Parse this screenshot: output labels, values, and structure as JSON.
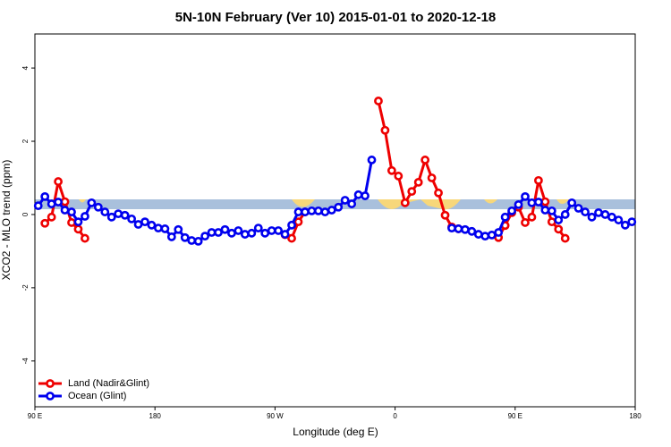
{
  "chart_data": {
    "type": "line",
    "title": "5N-10N February (Ver 10)   2015-01-01 to 2020-12-18",
    "x_label": "Longitude (deg E)",
    "y_label": "XCO2 - MLO trend (ppm)",
    "xlim": [
      90,
      540
    ],
    "ylim": [
      -5.25,
      4.93
    ],
    "xticks": [
      {
        "value": 90,
        "label": "90 E"
      },
      180,
      {
        "value": 270,
        "label": "90 W"
      },
      {
        "value": 360,
        "label": "0"
      },
      {
        "value": 450,
        "label": "90 E"
      },
      {
        "value": 540,
        "label": "180"
      }
    ],
    "yticks": [
      -4,
      -2,
      0,
      2,
      4
    ],
    "legend": "bottom-left",
    "x": [
      92.5,
      97.5,
      102.5,
      107.5,
      112.5,
      117.5,
      122.5,
      127.5,
      132.5,
      137.5,
      142.5,
      147.5,
      152.5,
      157.5,
      162.5,
      167.5,
      172.5,
      177.5,
      182.5,
      187.5,
      192.5,
      197.5,
      202.5,
      207.5,
      212.5,
      217.5,
      222.5,
      227.5,
      232.5,
      237.5,
      242.5,
      247.5,
      252.5,
      257.5,
      262.5,
      267.5,
      272.5,
      277.5,
      282.5,
      287.5,
      292.5,
      297.5,
      302.5,
      307.5,
      312.5,
      317.5,
      322.5,
      327.5,
      332.5,
      337.5,
      342.5,
      347.5,
      352.5,
      357.5,
      362.5,
      367.5,
      372.5,
      377.5,
      382.5,
      387.5,
      392.5,
      397.5,
      402.5,
      407.5,
      412.5,
      417.5,
      422.5,
      427.5,
      432.5,
      437.5,
      442.5,
      447.5,
      452.5,
      457.5,
      462.5,
      467.5,
      472.5,
      477.5,
      482.5,
      487.5,
      492.5,
      497.5,
      502.5,
      507.5,
      512.5,
      517.5,
      522.5,
      527.5,
      532.5,
      537.5
    ],
    "series": [
      {
        "name": "Land (Nadir&Glint)",
        "color": "#ee0000",
        "values": [
          null,
          -0.24,
          -0.07,
          0.9,
          0.35,
          -0.22,
          -0.4,
          -0.65,
          null,
          null,
          null,
          null,
          null,
          null,
          null,
          null,
          null,
          null,
          null,
          null,
          null,
          null,
          null,
          null,
          null,
          null,
          null,
          null,
          null,
          null,
          null,
          null,
          null,
          null,
          null,
          null,
          null,
          -0.55,
          -0.65,
          -0.2,
          0.07,
          null,
          null,
          null,
          null,
          null,
          null,
          null,
          null,
          null,
          null,
          3.1,
          2.3,
          1.2,
          1.05,
          0.32,
          0.63,
          0.88,
          1.49,
          1.0,
          0.59,
          -0.02,
          -0.34,
          -0.39,
          null,
          null,
          null,
          null,
          null,
          -0.63,
          -0.3,
          0.05,
          0.2,
          -0.22,
          -0.07,
          0.93,
          0.35,
          -0.2,
          -0.4,
          -0.65,
          null,
          null,
          null,
          null,
          null,
          null,
          null,
          null,
          null,
          null
        ]
      },
      {
        "name": "Ocean (Glint)",
        "color": "#0000ee",
        "values": [
          0.24,
          0.49,
          0.29,
          0.34,
          0.12,
          0.07,
          -0.2,
          -0.05,
          0.32,
          0.2,
          0.07,
          -0.07,
          0.02,
          -0.02,
          -0.12,
          -0.27,
          -0.2,
          -0.29,
          -0.37,
          -0.39,
          -0.61,
          -0.41,
          -0.63,
          -0.71,
          -0.73,
          -0.59,
          -0.49,
          -0.49,
          -0.41,
          -0.51,
          -0.44,
          -0.54,
          -0.51,
          -0.37,
          -0.51,
          -0.44,
          -0.44,
          -0.54,
          -0.29,
          0.07,
          0.07,
          0.1,
          0.1,
          0.07,
          0.12,
          0.2,
          0.39,
          0.29,
          0.54,
          0.51,
          1.49,
          null,
          null,
          null,
          null,
          null,
          null,
          null,
          null,
          null,
          null,
          null,
          -0.37,
          -0.39,
          -0.41,
          -0.46,
          -0.54,
          -0.59,
          -0.56,
          -0.49,
          -0.07,
          0.1,
          0.27,
          0.49,
          0.32,
          0.34,
          0.12,
          0.1,
          -0.15,
          0,
          0.32,
          0.17,
          0.07,
          -0.07,
          0.05,
          0,
          -0.07,
          -0.15,
          -0.29,
          -0.2
        ]
      }
    ]
  }
}
